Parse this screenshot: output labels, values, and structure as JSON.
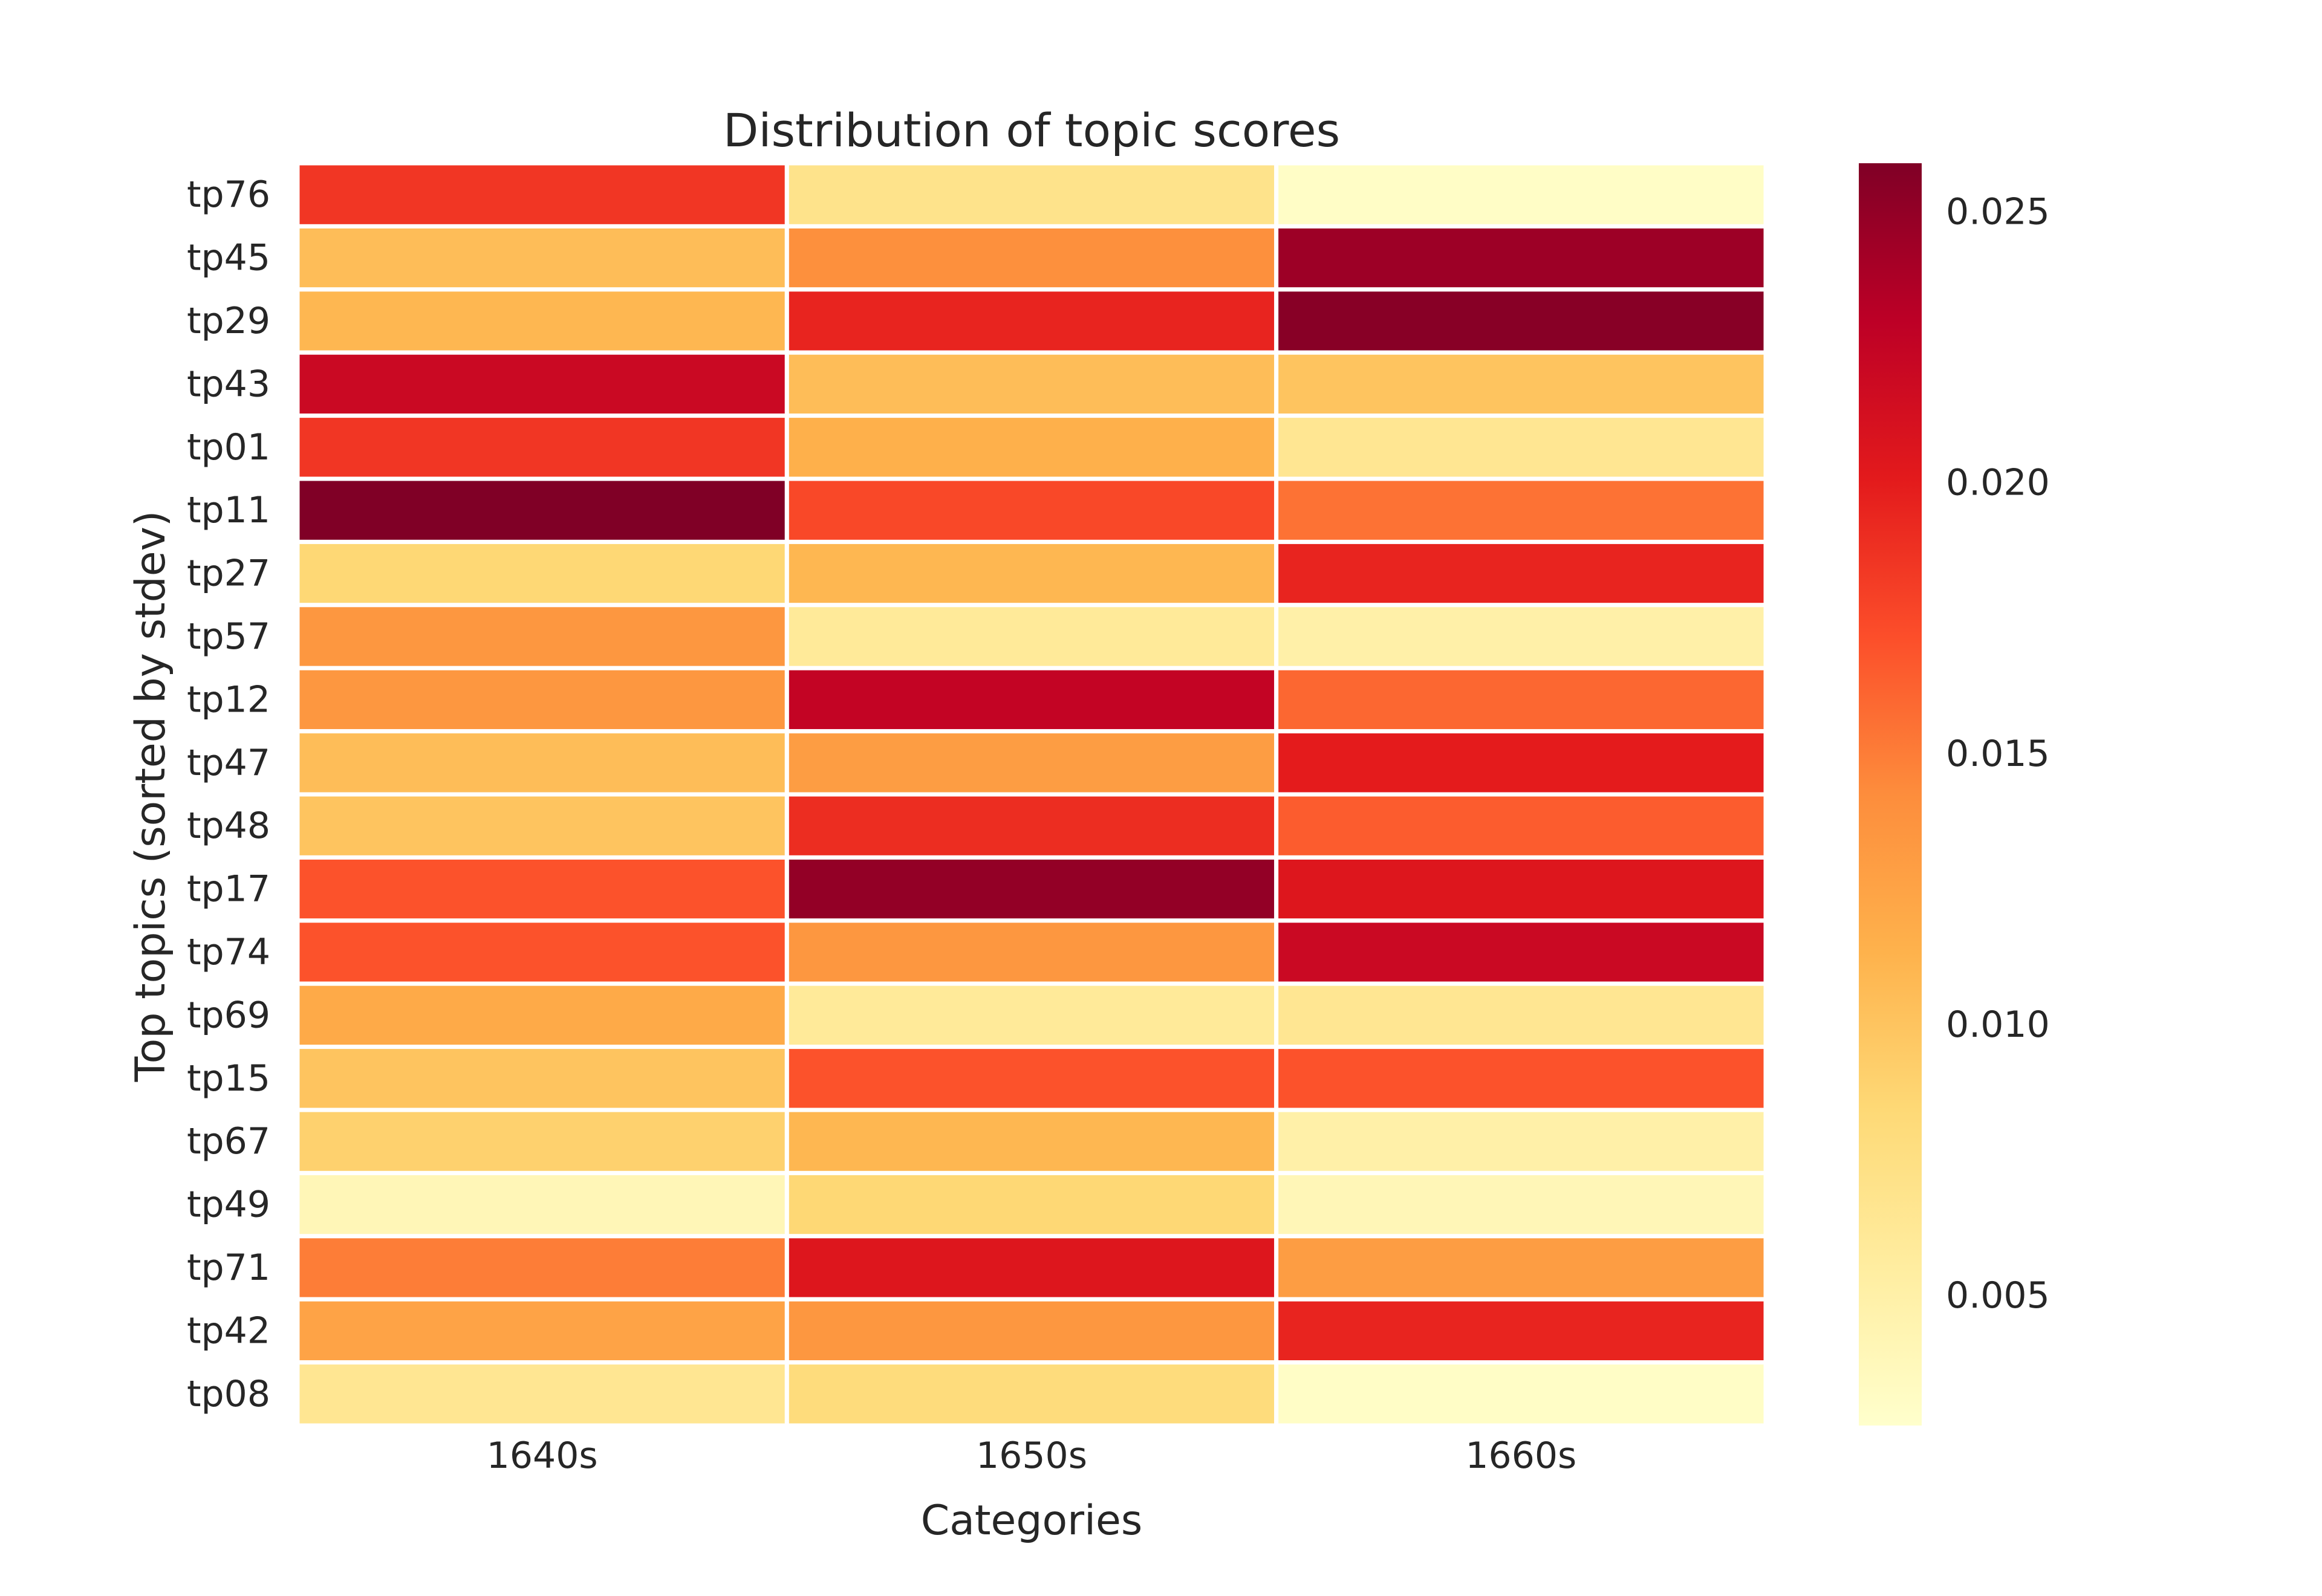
{
  "chart_data": {
    "type": "heatmap",
    "title": "Distribution of topic scores",
    "xlabel": "Categories",
    "ylabel": "Top topics (sorted by stdev)",
    "categories": [
      "1640s",
      "1650s",
      "1660s"
    ],
    "rows": [
      "tp76",
      "tp45",
      "tp29",
      "tp43",
      "tp01",
      "tp11",
      "tp27",
      "tp57",
      "tp12",
      "tp47",
      "tp48",
      "tp17",
      "tp74",
      "tp69",
      "tp15",
      "tp67",
      "tp49",
      "tp71",
      "tp42",
      "tp08"
    ],
    "values": [
      [
        0.0185,
        0.007,
        0.003
      ],
      [
        0.0105,
        0.014,
        0.0245
      ],
      [
        0.011,
        0.0195,
        0.0255
      ],
      [
        0.022,
        0.0105,
        0.01
      ],
      [
        0.0185,
        0.0115,
        0.0065
      ],
      [
        0.026,
        0.0175,
        0.0155
      ],
      [
        0.0085,
        0.011,
        0.0195
      ],
      [
        0.0135,
        0.006,
        0.005
      ],
      [
        0.0135,
        0.0225,
        0.016
      ],
      [
        0.0105,
        0.013,
        0.02
      ],
      [
        0.01,
        0.019,
        0.0165
      ],
      [
        0.017,
        0.025,
        0.0205
      ],
      [
        0.017,
        0.0135,
        0.022
      ],
      [
        0.012,
        0.006,
        0.0065
      ],
      [
        0.01,
        0.017,
        0.017
      ],
      [
        0.009,
        0.011,
        0.005
      ],
      [
        0.004,
        0.0085,
        0.004
      ],
      [
        0.015,
        0.0205,
        0.013
      ],
      [
        0.0125,
        0.0135,
        0.0195
      ],
      [
        0.0065,
        0.008,
        0.003
      ]
    ],
    "colormap": "YlOrRd",
    "colorbar": {
      "min": 0.0026,
      "max": 0.0259,
      "ticks": [
        0.025,
        0.02,
        0.015,
        0.01,
        0.005
      ],
      "tick_labels": [
        "0.025",
        "0.020",
        "0.015",
        "0.010",
        "0.005"
      ]
    },
    "grid": false,
    "cell_separator_color": "#ffffff"
  }
}
